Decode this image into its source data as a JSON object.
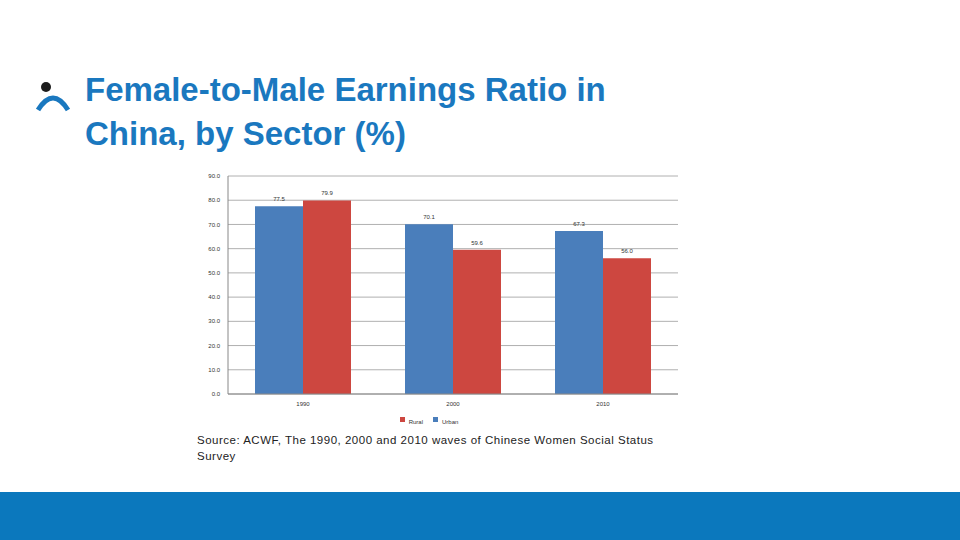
{
  "chart_data": {
    "type": "bar",
    "title": "Female-to-Male Earnings Ratio in China, by Sector (%)",
    "source": "Source: ACWF, The 1990, 2000 and 2010 waves of Chinese Women Social Status Survey",
    "categories": [
      "1990",
      "2000",
      "2010"
    ],
    "series": [
      {
        "name": "Urban",
        "color": "#4a7ebb",
        "values": [
          77.5,
          70.1,
          67.3
        ],
        "value_labels": [
          "77.5",
          "70.1",
          "67.3"
        ]
      },
      {
        "name": "Rural",
        "color": "#cd4740",
        "values": [
          79.9,
          59.6,
          56.0
        ],
        "value_labels": [
          "79.9",
          "59.6",
          "56.0"
        ]
      }
    ],
    "ylim": [
      0,
      90
    ],
    "yticks": [
      {
        "value": 0,
        "label": "0.0"
      },
      {
        "value": 10,
        "label": "10.0"
      },
      {
        "value": 20,
        "label": "20.0"
      },
      {
        "value": 30,
        "label": "30.0"
      },
      {
        "value": 40,
        "label": "40.0"
      },
      {
        "value": 50,
        "label": "50.0"
      },
      {
        "value": 60,
        "label": "60.0"
      },
      {
        "value": 70,
        "label": "70.0"
      },
      {
        "value": 80,
        "label": "80.0"
      },
      {
        "value": 90,
        "label": "90.0"
      }
    ],
    "grid": true,
    "legend": "bottom",
    "data_labels": true
  }
}
